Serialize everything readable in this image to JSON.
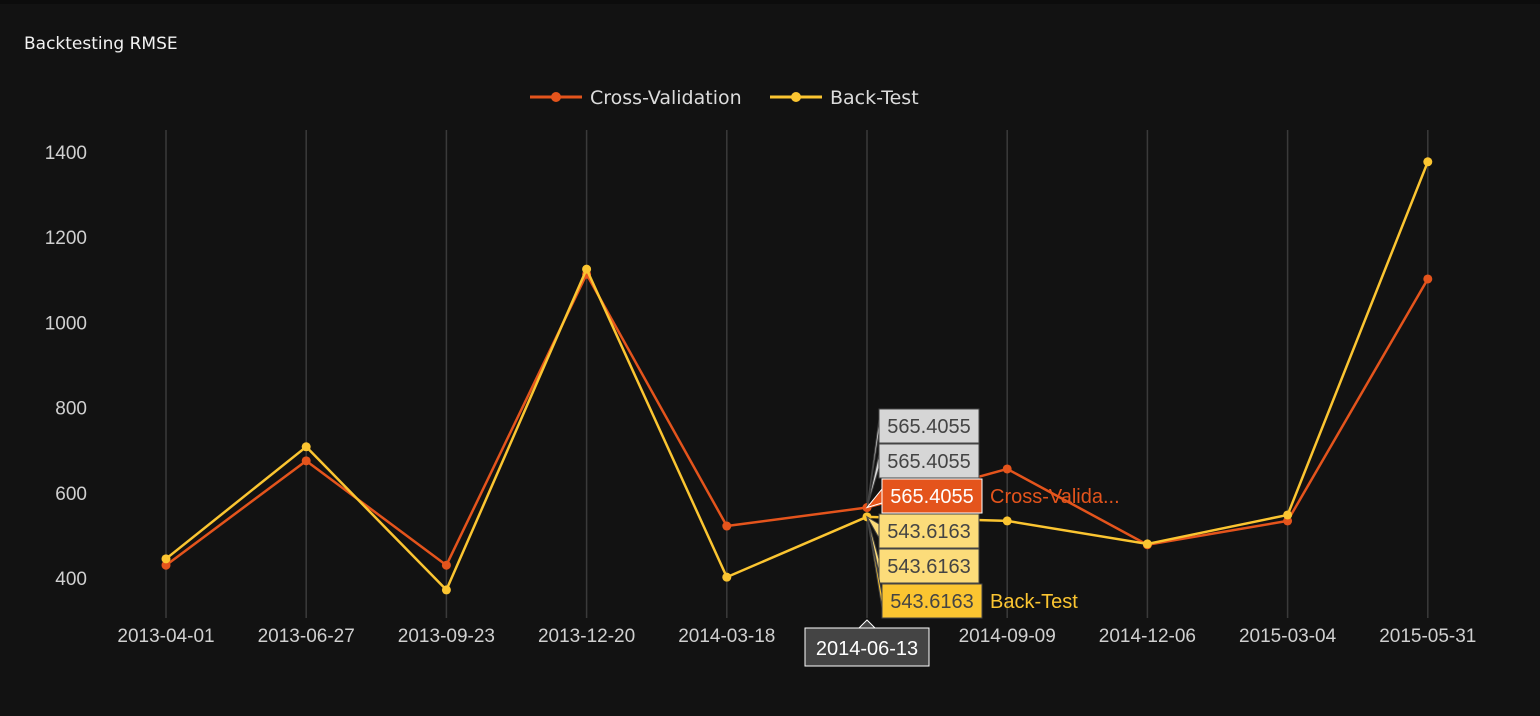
{
  "title": "Backtesting RMSE",
  "legend": {
    "items": [
      {
        "label": "Cross-Validation",
        "color": "#e4541c"
      },
      {
        "label": "Back-Test",
        "color": "#fbc531"
      }
    ]
  },
  "hover": {
    "x_label": "2014-06-13",
    "spikes": [
      {
        "value": "565.4055",
        "style": "gray"
      },
      {
        "value": "565.4055",
        "style": "gray"
      },
      {
        "value": "565.4055",
        "style": "cv",
        "name": "Cross-Valida..."
      },
      {
        "value": "543.6163",
        "style": "bt-light"
      },
      {
        "value": "543.6163",
        "style": "bt-light"
      },
      {
        "value": "543.6163",
        "style": "bt",
        "name": "Back-Test"
      }
    ]
  },
  "colors": {
    "background": "#121212",
    "grid": "#3a3a3a",
    "cross_validation": "#e4541c",
    "back_test": "#fbc531"
  },
  "chart_data": {
    "type": "line",
    "title": "Backtesting RMSE",
    "xlabel": "",
    "ylabel": "",
    "categories": [
      "2013-04-01",
      "2013-06-27",
      "2013-09-23",
      "2013-12-20",
      "2014-03-18",
      "2014-06-13",
      "2014-09-09",
      "2014-12-06",
      "2015-03-04",
      "2015-05-31"
    ],
    "series": [
      {
        "name": "Cross-Validation",
        "color": "#e4541c",
        "values": [
          430,
          675,
          430,
          1113,
          522,
          565.4055,
          656,
          478,
          534,
          1102
        ]
      },
      {
        "name": "Back-Test",
        "color": "#fbc531",
        "values": [
          445,
          708,
          372,
          1125,
          402,
          543.6163,
          534,
          480,
          548,
          1377
        ]
      }
    ],
    "yticks": [
      400,
      600,
      800,
      1000,
      1200,
      1400
    ],
    "ylim": [
      310,
      1440
    ],
    "grid": {
      "x": true,
      "y": false
    },
    "legend_position": "top-center"
  }
}
